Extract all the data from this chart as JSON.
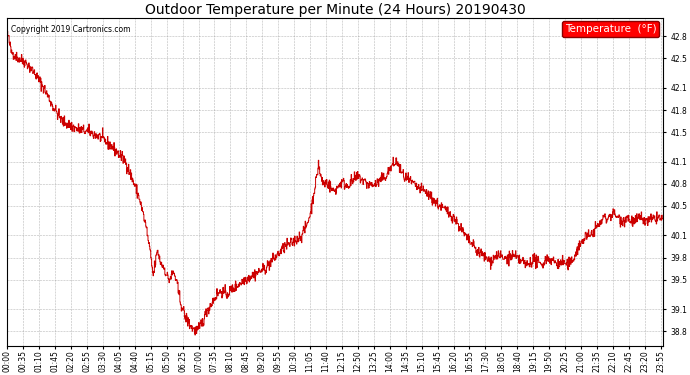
{
  "title": "Outdoor Temperature per Minute (24 Hours) 20190430",
  "copyright_text": "Copyright 2019 Cartronics.com",
  "legend_label": "Temperature  (°F)",
  "line_color": "#cc0000",
  "background_color": "#ffffff",
  "grid_color": "#999999",
  "ylim": [
    38.6,
    43.05
  ],
  "yticks": [
    38.8,
    39.1,
    39.5,
    39.8,
    40.1,
    40.5,
    40.8,
    41.1,
    41.5,
    41.8,
    42.1,
    42.5,
    42.8
  ],
  "xtick_step": 35,
  "title_fontsize": 10,
  "legend_fontsize": 7.5,
  "tick_fontsize": 5.5,
  "copyright_fontsize": 5.5,
  "figwidth": 6.9,
  "figheight": 3.75,
  "dpi": 100
}
